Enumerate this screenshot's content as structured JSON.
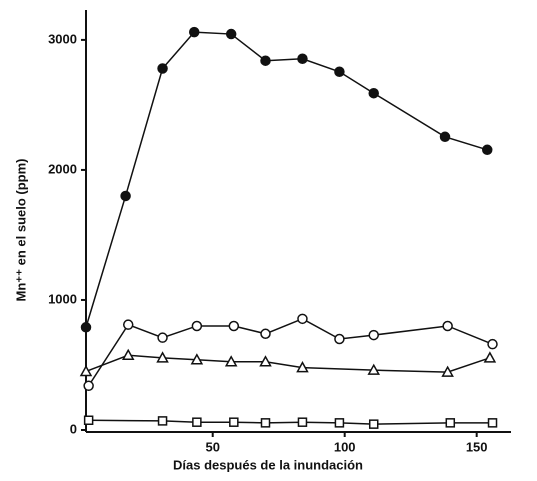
{
  "chart_data": {
    "type": "line",
    "xlabel": "Días después de la inundación",
    "ylabel": "Mn⁺⁺ en el suelo (ppm)",
    "xlim": [
      2,
      163
    ],
    "ylim": [
      0,
      3230
    ],
    "xticks": [
      50,
      100,
      150
    ],
    "yticks": [
      0,
      1000,
      2000,
      3000
    ],
    "series": [
      {
        "marker": "filled-circle",
        "color": "#111111",
        "x": [
          2,
          17,
          31,
          43,
          57,
          70,
          84,
          98,
          111,
          138,
          154
        ],
        "values": [
          790,
          1800,
          2780,
          3060,
          3045,
          2840,
          2855,
          2755,
          2590,
          2255,
          2155
        ]
      },
      {
        "marker": "open-circle",
        "color": "#111111",
        "x": [
          3,
          18,
          31,
          44,
          58,
          70,
          84,
          98,
          111,
          139,
          156
        ],
        "values": [
          340,
          810,
          710,
          800,
          800,
          740,
          855,
          700,
          730,
          800,
          660
        ]
      },
      {
        "marker": "open-triangle",
        "color": "#111111",
        "x": [
          2,
          18,
          31,
          44,
          57,
          70,
          84,
          111,
          139,
          155
        ],
        "values": [
          450,
          575,
          555,
          540,
          525,
          525,
          480,
          460,
          445,
          555
        ]
      },
      {
        "marker": "open-square",
        "color": "#111111",
        "x": [
          3,
          31,
          44,
          58,
          70,
          84,
          98,
          111,
          140,
          156
        ],
        "values": [
          75,
          70,
          60,
          60,
          55,
          60,
          55,
          45,
          55,
          55
        ]
      }
    ]
  }
}
